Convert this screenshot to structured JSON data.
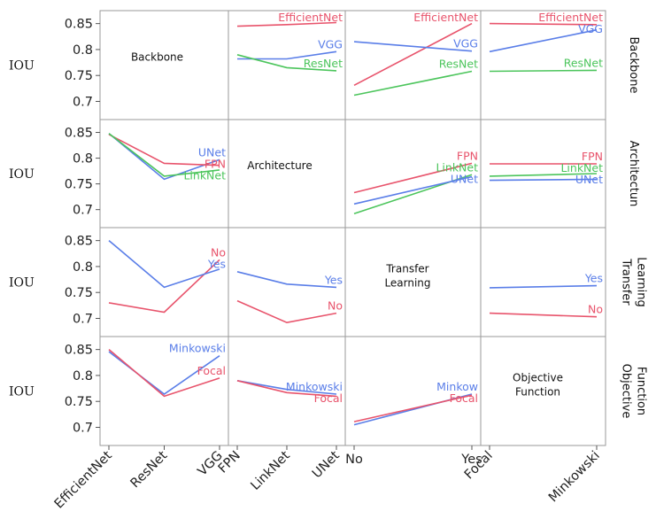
{
  "chart_data": {
    "type": "line",
    "title": "",
    "ylabel": "IOU",
    "ylim": [
      0.665,
      0.875
    ],
    "yticks": [
      "0.85",
      "0.8",
      "0.75",
      "0.7"
    ],
    "factors": [
      {
        "name": "Backbone",
        "diag_label": "Backbone",
        "row_label": "Backbone",
        "levels": [
          "EfficientNet",
          "ResNet",
          "VGG"
        ]
      },
      {
        "name": "Architecture",
        "diag_label": "Architecture",
        "row_label": "Architectun",
        "levels": [
          "FPN",
          "LinkNet",
          "UNet"
        ]
      },
      {
        "name": "Transfer Learning",
        "diag_label": "Transfer Learning",
        "row_label": "Transfer Learning",
        "levels": [
          "No",
          "Yes"
        ]
      },
      {
        "name": "Objective Function",
        "diag_label": "Objective Function",
        "row_label": "Objective Function",
        "levels": [
          "Focal",
          "Minkowski"
        ]
      }
    ],
    "panels": [
      {
        "row": 0,
        "col": 1,
        "series": [
          {
            "name": "EfficientNet",
            "color": "#e8546c",
            "values": [
              0.845,
              0.848,
              0.852
            ]
          },
          {
            "name": "VGG",
            "color": "#5a7ee8",
            "values": [
              0.782,
              0.782,
              0.796
            ]
          },
          {
            "name": "ResNet",
            "color": "#4cc55c",
            "values": [
              0.79,
              0.765,
              0.759
            ]
          }
        ]
      },
      {
        "row": 0,
        "col": 2,
        "series": [
          {
            "name": "EfficientNet",
            "color": "#e8546c",
            "values": [
              0.731,
              0.85
            ]
          },
          {
            "name": "VGG",
            "color": "#5a7ee8",
            "values": [
              0.815,
              0.797
            ]
          },
          {
            "name": "ResNet",
            "color": "#4cc55c",
            "values": [
              0.712,
              0.758
            ]
          }
        ]
      },
      {
        "row": 0,
        "col": 3,
        "series": [
          {
            "name": "EfficientNet",
            "color": "#e8546c",
            "values": [
              0.85,
              0.848
            ]
          },
          {
            "name": "VGG",
            "color": "#5a7ee8",
            "values": [
              0.796,
              0.838
            ]
          },
          {
            "name": "ResNet",
            "color": "#4cc55c",
            "values": [
              0.758,
              0.76
            ]
          }
        ]
      },
      {
        "row": 1,
        "col": 0,
        "series": [
          {
            "name": "UNet",
            "color": "#5a7ee8",
            "values": [
              0.848,
              0.759,
              0.797
            ]
          },
          {
            "name": "FPN",
            "color": "#e8546c",
            "values": [
              0.846,
              0.79,
              0.786
            ]
          },
          {
            "name": "LinkNet",
            "color": "#4cc55c",
            "values": [
              0.848,
              0.765,
              0.777
            ]
          }
        ]
      },
      {
        "row": 1,
        "col": 2,
        "series": [
          {
            "name": "FPN",
            "color": "#e8546c",
            "values": [
              0.733,
              0.79
            ]
          },
          {
            "name": "LinkNet",
            "color": "#4cc55c",
            "values": [
              0.692,
              0.768
            ]
          },
          {
            "name": "UNet",
            "color": "#5a7ee8",
            "values": [
              0.711,
              0.764
            ]
          }
        ]
      },
      {
        "row": 1,
        "col": 3,
        "series": [
          {
            "name": "FPN",
            "color": "#e8546c",
            "values": [
              0.789,
              0.789
            ]
          },
          {
            "name": "LinkNet",
            "color": "#4cc55c",
            "values": [
              0.765,
              0.77
            ]
          },
          {
            "name": "UNet",
            "color": "#5a7ee8",
            "values": [
              0.757,
              0.759
            ]
          }
        ]
      },
      {
        "row": 2,
        "col": 0,
        "series": [
          {
            "name": "No",
            "color": "#e8546c",
            "values": [
              0.73,
              0.712,
              0.813
            ]
          },
          {
            "name": "Yes",
            "color": "#5a7ee8",
            "values": [
              0.85,
              0.76,
              0.795
            ]
          }
        ]
      },
      {
        "row": 2,
        "col": 1,
        "series": [
          {
            "name": "Yes",
            "color": "#5a7ee8",
            "values": [
              0.79,
              0.766,
              0.76
            ]
          },
          {
            "name": "No",
            "color": "#e8546c",
            "values": [
              0.734,
              0.692,
              0.71
            ]
          }
        ]
      },
      {
        "row": 2,
        "col": 3,
        "series": [
          {
            "name": "Yes",
            "color": "#5a7ee8",
            "values": [
              0.759,
              0.763
            ]
          },
          {
            "name": "No",
            "color": "#e8546c",
            "values": [
              0.71,
              0.703
            ]
          }
        ]
      },
      {
        "row": 3,
        "col": 0,
        "series": [
          {
            "name": "Minkowski",
            "color": "#5a7ee8",
            "values": [
              0.846,
              0.764,
              0.838
            ]
          },
          {
            "name": "Focal",
            "color": "#e8546c",
            "values": [
              0.85,
              0.76,
              0.795
            ]
          }
        ]
      },
      {
        "row": 3,
        "col": 1,
        "series": [
          {
            "name": "Minkowski",
            "color": "#5a7ee8",
            "values": [
              0.79,
              0.773,
              0.764
            ]
          },
          {
            "name": "Focal",
            "color": "#e8546c",
            "values": [
              0.79,
              0.767,
              0.76
            ]
          }
        ]
      },
      {
        "row": 3,
        "col": 2,
        "series": [
          {
            "name": "Minkow",
            "color": "#5a7ee8",
            "values": [
              0.705,
              0.764
            ]
          },
          {
            "name": "Focal",
            "color": "#e8546c",
            "values": [
              0.711,
              0.762
            ]
          }
        ]
      }
    ]
  }
}
